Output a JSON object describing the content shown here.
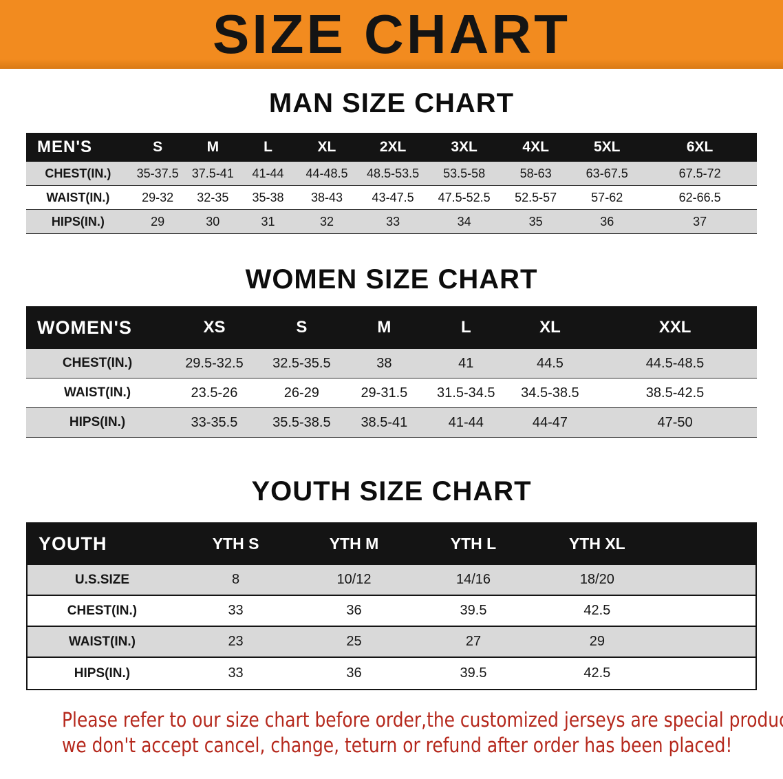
{
  "banner": {
    "title": "SIZE CHART"
  },
  "colors": {
    "banner_orange": "#f28b1f",
    "table_header": "#141414",
    "row_shade": "#d9d9d9",
    "notice_red": "#b5281c"
  },
  "sections": [
    {
      "heading": "MAN SIZE CHART",
      "table": {
        "header": [
          "MEN'S",
          "S",
          "M",
          "L",
          "XL",
          "2XL",
          "3XL",
          "4XL",
          "5XL",
          "6XL"
        ],
        "rows": [
          [
            "CHEST(IN.)",
            "35-37.5",
            "37.5-41",
            "41-44",
            "44-48.5",
            "48.5-53.5",
            "53.5-58",
            "58-63",
            "63-67.5",
            "67.5-72"
          ],
          [
            "WAIST(IN.)",
            "29-32",
            "32-35",
            "35-38",
            "38-43",
            "43-47.5",
            "47.5-52.5",
            "52.5-57",
            "57-62",
            "62-66.5"
          ],
          [
            "HIPS(IN.)",
            "29",
            "30",
            "31",
            "32",
            "33",
            "34",
            "35",
            "36",
            "37"
          ]
        ]
      }
    },
    {
      "heading": "WOMEN SIZE CHART",
      "table": {
        "header": [
          "WOMEN'S",
          "XS",
          "S",
          "M",
          "L",
          "XL",
          "XXL"
        ],
        "rows": [
          [
            "CHEST(IN.)",
            "29.5-32.5",
            "32.5-35.5",
            "38",
            "41",
            "44.5",
            "44.5-48.5"
          ],
          [
            "WAIST(IN.)",
            "23.5-26",
            "26-29",
            "29-31.5",
            "31.5-34.5",
            "34.5-38.5",
            "38.5-42.5"
          ],
          [
            "HIPS(IN.)",
            "33-35.5",
            "35.5-38.5",
            "38.5-41",
            "41-44",
            "44-47",
            "47-50"
          ]
        ]
      }
    },
    {
      "heading": "YOUTH SIZE CHART",
      "table": {
        "header": [
          "YOUTH",
          "YTH S",
          "YTH M",
          "YTH L",
          "YTH XL"
        ],
        "rows": [
          [
            "U.S.SIZE",
            "8",
            "10/12",
            "14/16",
            "18/20"
          ],
          [
            "CHEST(IN.)",
            "33",
            "36",
            "39.5",
            "42.5"
          ],
          [
            "WAIST(IN.)",
            "23",
            "25",
            "27",
            "29"
          ],
          [
            "HIPS(IN.)",
            "33",
            "36",
            "39.5",
            "42.5"
          ]
        ]
      }
    }
  ],
  "footer": {
    "line1": "Please refer to our size chart before order,the customized jerseys are special products,",
    "line2": "we don't accept cancel, change, teturn or refund after order has been placed!"
  }
}
